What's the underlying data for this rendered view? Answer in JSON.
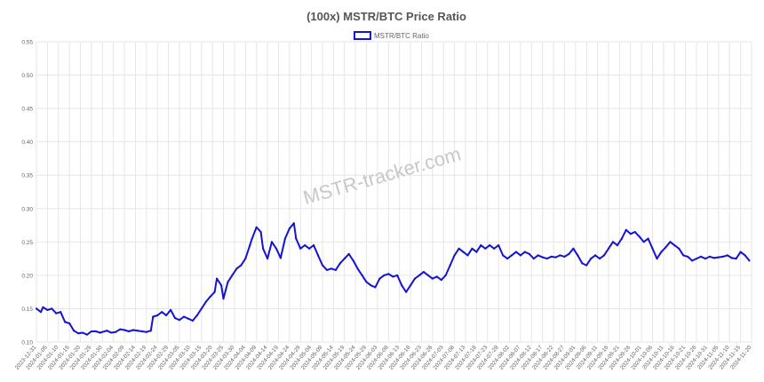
{
  "watermark": "MSTR-tracker.com",
  "colors": {
    "line": "#1414d2",
    "grid": "#e6e6e6",
    "text": "#666666",
    "title": "#555555",
    "watermark": "#c8c8c8"
  },
  "chart_data": {
    "type": "line",
    "title": "(100x) MSTR/BTC Price Ratio",
    "legend": {
      "placement": "top-center",
      "label": "MSTR/BTC Ratio"
    },
    "grid": true,
    "ylim": [
      0.1,
      0.55
    ],
    "yticks": [
      "0.55",
      "0.50",
      "0.45",
      "0.40",
      "0.35",
      "0.30",
      "0.25",
      "0.20",
      "0.15",
      "0.10"
    ],
    "xlim": [
      "2023-12-31",
      "2024-11-20"
    ],
    "xticks": [
      "2023-12-31",
      "2024-01-05",
      "2024-01-10",
      "2024-01-15",
      "2024-01-20",
      "2024-01-25",
      "2024-01-30",
      "2024-02-04",
      "2024-02-09",
      "2024-02-14",
      "2024-02-19",
      "2024-02-24",
      "2024-02-29",
      "2024-03-05",
      "2024-03-10",
      "2024-03-15",
      "2024-03-20",
      "2024-03-25",
      "2024-03-30",
      "2024-04-04",
      "2024-04-09",
      "2024-04-14",
      "2024-04-19",
      "2024-04-24",
      "2024-04-29",
      "2024-05-04",
      "2024-05-09",
      "2024-05-14",
      "2024-05-19",
      "2024-05-24",
      "2024-05-29",
      "2024-06-03",
      "2024-06-08",
      "2024-06-13",
      "2024-06-18",
      "2024-06-23",
      "2024-06-28",
      "2024-07-03",
      "2024-07-08",
      "2024-07-13",
      "2024-07-18",
      "2024-07-23",
      "2024-07-28",
      "2024-08-02",
      "2024-08-07",
      "2024-08-12",
      "2024-08-17",
      "2024-08-22",
      "2024-08-27",
      "2024-09-01",
      "2024-09-06",
      "2024-09-11",
      "2024-09-16",
      "2024-09-21",
      "2024-09-26",
      "2024-10-01",
      "2024-10-06",
      "2024-10-11",
      "2024-10-16",
      "2024-10-21",
      "2024-10-26",
      "2024-10-31",
      "2024-11-05",
      "2024-11-10",
      "2024-11-15",
      "2024-11-20"
    ],
    "series": [
      {
        "name": "MSTR/BTC Ratio",
        "points": [
          [
            "2023-12-31",
            0.15
          ],
          [
            "2024-01-02",
            0.145
          ],
          [
            "2024-01-03",
            0.152
          ],
          [
            "2024-01-05",
            0.148
          ],
          [
            "2024-01-07",
            0.15
          ],
          [
            "2024-01-09",
            0.143
          ],
          [
            "2024-01-11",
            0.145
          ],
          [
            "2024-01-13",
            0.13
          ],
          [
            "2024-01-15",
            0.128
          ],
          [
            "2024-01-17",
            0.117
          ],
          [
            "2024-01-19",
            0.113
          ],
          [
            "2024-01-21",
            0.114
          ],
          [
            "2024-01-23",
            0.111
          ],
          [
            "2024-01-25",
            0.116
          ],
          [
            "2024-01-27",
            0.116
          ],
          [
            "2024-01-29",
            0.114
          ],
          [
            "2024-02-01",
            0.117
          ],
          [
            "2024-02-03",
            0.114
          ],
          [
            "2024-02-05",
            0.115
          ],
          [
            "2024-02-07",
            0.119
          ],
          [
            "2024-02-09",
            0.118
          ],
          [
            "2024-02-11",
            0.116
          ],
          [
            "2024-02-13",
            0.118
          ],
          [
            "2024-02-15",
            0.117
          ],
          [
            "2024-02-17",
            0.116
          ],
          [
            "2024-02-19",
            0.115
          ],
          [
            "2024-02-21",
            0.117
          ],
          [
            "2024-02-22",
            0.138
          ],
          [
            "2024-02-24",
            0.14
          ],
          [
            "2024-02-26",
            0.145
          ],
          [
            "2024-02-28",
            0.14
          ],
          [
            "2024-03-01",
            0.148
          ],
          [
            "2024-03-03",
            0.136
          ],
          [
            "2024-03-05",
            0.133
          ],
          [
            "2024-03-07",
            0.138
          ],
          [
            "2024-03-09",
            0.135
          ],
          [
            "2024-03-11",
            0.132
          ],
          [
            "2024-03-13",
            0.14
          ],
          [
            "2024-03-15",
            0.15
          ],
          [
            "2024-03-17",
            0.16
          ],
          [
            "2024-03-19",
            0.168
          ],
          [
            "2024-03-21",
            0.175
          ],
          [
            "2024-03-22",
            0.195
          ],
          [
            "2024-03-24",
            0.185
          ],
          [
            "2024-03-25",
            0.165
          ],
          [
            "2024-03-27",
            0.19
          ],
          [
            "2024-03-29",
            0.2
          ],
          [
            "2024-03-31",
            0.21
          ],
          [
            "2024-04-02",
            0.215
          ],
          [
            "2024-04-04",
            0.225
          ],
          [
            "2024-04-06",
            0.245
          ],
          [
            "2024-04-07",
            0.255
          ],
          [
            "2024-04-09",
            0.272
          ],
          [
            "2024-04-11",
            0.265
          ],
          [
            "2024-04-12",
            0.24
          ],
          [
            "2024-04-14",
            0.225
          ],
          [
            "2024-04-16",
            0.25
          ],
          [
            "2024-04-18",
            0.24
          ],
          [
            "2024-04-20",
            0.226
          ],
          [
            "2024-04-22",
            0.255
          ],
          [
            "2024-04-24",
            0.27
          ],
          [
            "2024-04-26",
            0.278
          ],
          [
            "2024-04-27",
            0.255
          ],
          [
            "2024-04-29",
            0.24
          ],
          [
            "2024-05-01",
            0.245
          ],
          [
            "2024-05-03",
            0.24
          ],
          [
            "2024-05-05",
            0.245
          ],
          [
            "2024-05-07",
            0.23
          ],
          [
            "2024-05-09",
            0.215
          ],
          [
            "2024-05-11",
            0.208
          ],
          [
            "2024-05-13",
            0.21
          ],
          [
            "2024-05-15",
            0.208
          ],
          [
            "2024-05-17",
            0.218
          ],
          [
            "2024-05-19",
            0.225
          ],
          [
            "2024-05-21",
            0.232
          ],
          [
            "2024-05-23",
            0.222
          ],
          [
            "2024-05-25",
            0.21
          ],
          [
            "2024-05-27",
            0.2
          ],
          [
            "2024-05-29",
            0.19
          ],
          [
            "2024-05-31",
            0.185
          ],
          [
            "2024-06-02",
            0.182
          ],
          [
            "2024-06-04",
            0.195
          ],
          [
            "2024-06-06",
            0.2
          ],
          [
            "2024-06-08",
            0.202
          ],
          [
            "2024-06-10",
            0.198
          ],
          [
            "2024-06-12",
            0.2
          ],
          [
            "2024-06-14",
            0.185
          ],
          [
            "2024-06-16",
            0.175
          ],
          [
            "2024-06-18",
            0.185
          ],
          [
            "2024-06-20",
            0.195
          ],
          [
            "2024-06-22",
            0.2
          ],
          [
            "2024-06-24",
            0.205
          ],
          [
            "2024-06-26",
            0.2
          ],
          [
            "2024-06-28",
            0.195
          ],
          [
            "2024-06-30",
            0.198
          ],
          [
            "2024-07-02",
            0.193
          ],
          [
            "2024-07-04",
            0.2
          ],
          [
            "2024-07-06",
            0.215
          ],
          [
            "2024-07-08",
            0.23
          ],
          [
            "2024-07-10",
            0.24
          ],
          [
            "2024-07-12",
            0.235
          ],
          [
            "2024-07-14",
            0.23
          ],
          [
            "2024-07-16",
            0.24
          ],
          [
            "2024-07-18",
            0.235
          ],
          [
            "2024-07-20",
            0.245
          ],
          [
            "2024-07-22",
            0.24
          ],
          [
            "2024-07-24",
            0.245
          ],
          [
            "2024-07-26",
            0.24
          ],
          [
            "2024-07-28",
            0.245
          ],
          [
            "2024-07-30",
            0.23
          ],
          [
            "2024-08-01",
            0.225
          ],
          [
            "2024-08-03",
            0.23
          ],
          [
            "2024-08-05",
            0.235
          ],
          [
            "2024-08-07",
            0.23
          ],
          [
            "2024-08-09",
            0.235
          ],
          [
            "2024-08-11",
            0.232
          ],
          [
            "2024-08-13",
            0.225
          ],
          [
            "2024-08-15",
            0.23
          ],
          [
            "2024-08-17",
            0.227
          ],
          [
            "2024-08-19",
            0.225
          ],
          [
            "2024-08-21",
            0.228
          ],
          [
            "2024-08-23",
            0.227
          ],
          [
            "2024-08-25",
            0.23
          ],
          [
            "2024-08-27",
            0.228
          ],
          [
            "2024-08-29",
            0.232
          ],
          [
            "2024-08-31",
            0.24
          ],
          [
            "2024-09-02",
            0.23
          ],
          [
            "2024-09-04",
            0.218
          ],
          [
            "2024-09-06",
            0.215
          ],
          [
            "2024-09-08",
            0.225
          ],
          [
            "2024-09-10",
            0.23
          ],
          [
            "2024-09-12",
            0.225
          ],
          [
            "2024-09-14",
            0.23
          ],
          [
            "2024-09-16",
            0.24
          ],
          [
            "2024-09-18",
            0.25
          ],
          [
            "2024-09-20",
            0.245
          ],
          [
            "2024-09-22",
            0.255
          ],
          [
            "2024-09-24",
            0.268
          ],
          [
            "2024-09-26",
            0.262
          ],
          [
            "2024-09-28",
            0.265
          ],
          [
            "2024-09-30",
            0.258
          ],
          [
            "2024-10-02",
            0.25
          ],
          [
            "2024-10-04",
            0.255
          ],
          [
            "2024-10-06",
            0.24
          ],
          [
            "2024-10-08",
            0.225
          ],
          [
            "2024-10-10",
            0.235
          ],
          [
            "2024-10-12",
            0.242
          ],
          [
            "2024-10-14",
            0.25
          ],
          [
            "2024-10-16",
            0.245
          ],
          [
            "2024-10-18",
            0.24
          ],
          [
            "2024-10-20",
            0.23
          ],
          [
            "2024-10-22",
            0.228
          ],
          [
            "2024-10-24",
            0.222
          ],
          [
            "2024-10-26",
            0.225
          ],
          [
            "2024-10-28",
            0.228
          ],
          [
            "2024-10-30",
            0.225
          ],
          [
            "2024-11-01",
            0.228
          ],
          [
            "2024-11-03",
            0.226
          ],
          [
            "2024-11-05",
            0.227
          ],
          [
            "2024-11-07",
            0.228
          ],
          [
            "2024-11-09",
            0.23
          ],
          [
            "2024-11-11",
            0.226
          ],
          [
            "2024-11-13",
            0.225
          ],
          [
            "2024-11-15",
            0.235
          ],
          [
            "2024-11-17",
            0.23
          ],
          [
            "2024-11-19",
            0.222
          ]
        ]
      }
    ]
  }
}
